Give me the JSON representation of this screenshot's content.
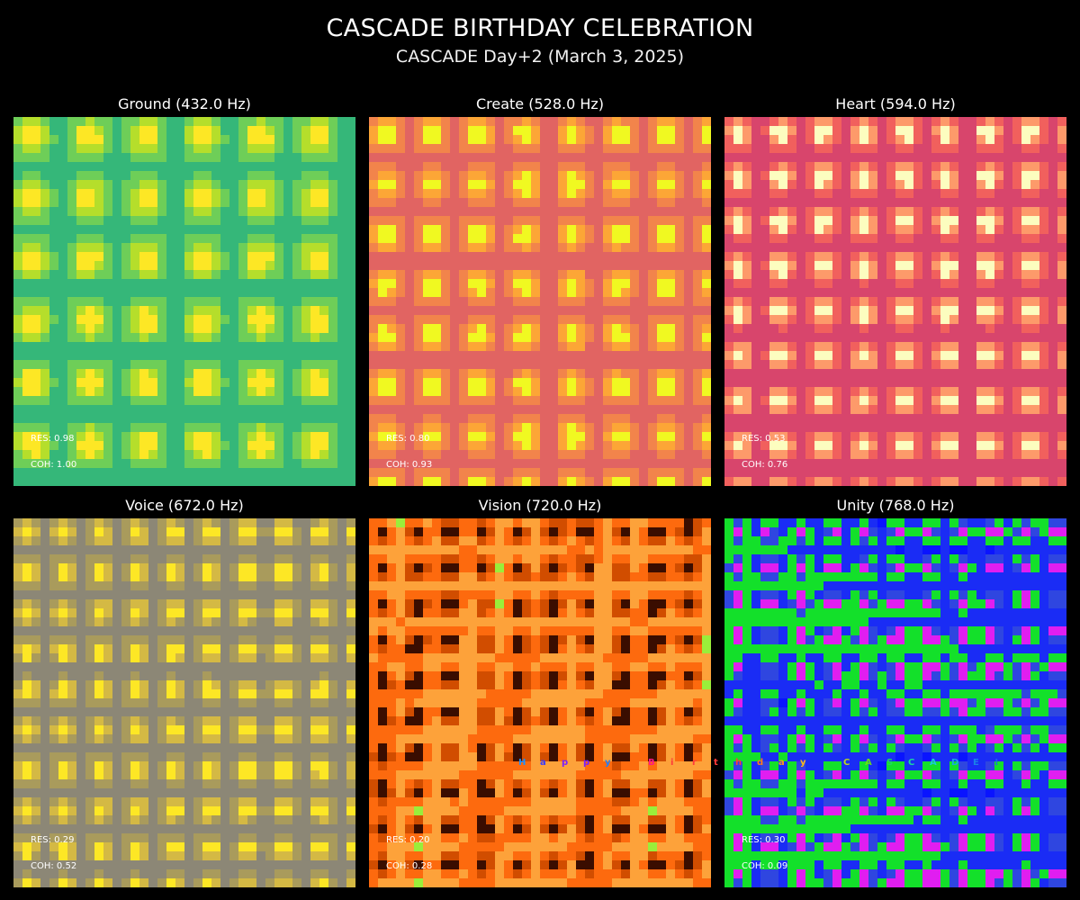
{
  "header": {
    "title": "CASCADE BIRTHDAY CELEBRATION",
    "subtitle": "CASCADE Day+2 (March 3, 2025)"
  },
  "panels": [
    {
      "title": "Ground (432.0 Hz)",
      "res": "RES: 0.98",
      "coh": "COH: 1.00",
      "palette": [
        "#1f9e89",
        "#35b779",
        "#6ece58",
        "#b5de2b",
        "#fde725"
      ]
    },
    {
      "title": "Create (528.0 Hz)",
      "res": "RES: 0.80",
      "coh": "COH: 0.93",
      "palette": [
        "#cc4778",
        "#e16462",
        "#f2844b",
        "#fca636",
        "#f0f921"
      ]
    },
    {
      "title": "Heart (594.0 Hz)",
      "res": "RES: 0.53",
      "coh": "COH: 0.76",
      "palette": [
        "#b73779",
        "#d8456c",
        "#f1605d",
        "#fd9a6a",
        "#fcfdbf"
      ]
    },
    {
      "title": "Voice (672.0 Hz)",
      "res": "RES: 0.29",
      "coh": "COH: 0.52",
      "palette": [
        "#7f7f7f",
        "#8c8776",
        "#a99b5c",
        "#d4b944",
        "#fde725"
      ]
    },
    {
      "title": "Vision (720.0 Hz)",
      "res": "RES: 0.20",
      "coh": "COH: 0.28",
      "palette": [
        "#9aee3a",
        "#fda23a",
        "#fd6a0e",
        "#d14d00",
        "#3a0d00"
      ]
    },
    {
      "title": "Unity (768.0 Hz)",
      "res": "RES: 0.30",
      "coh": "COH: 0.09",
      "palette": [
        "#0a14ff",
        "#1a2cf5",
        "#13e02a",
        "#2f46e0",
        "#e01ef0"
      ]
    }
  ],
  "birthday_message": {
    "letters": [
      "H",
      "a",
      "p",
      "p",
      "y",
      "B",
      "i",
      "r",
      "t",
      "h",
      "d",
      "a",
      "y",
      "C",
      "A",
      "S",
      "C",
      "A",
      "D",
      "E",
      "!"
    ],
    "colors": [
      "#1e90ff",
      "#3a3aff",
      "#7a1fff",
      "#7a1fff",
      "#2080ff",
      "#ff1a8a",
      "#ff3a3a",
      "#ff3a3a",
      "#ff3a3a",
      "#ff3a3a",
      "#ff7a1a",
      "#ff9a1a",
      "#ffb81a",
      "#b8d81a",
      "#6ad81a",
      "#20d860",
      "#1ad8a0",
      "#1ac8d8",
      "#1aa8e0",
      "#1a80e8",
      "#2060f0"
    ]
  }
}
